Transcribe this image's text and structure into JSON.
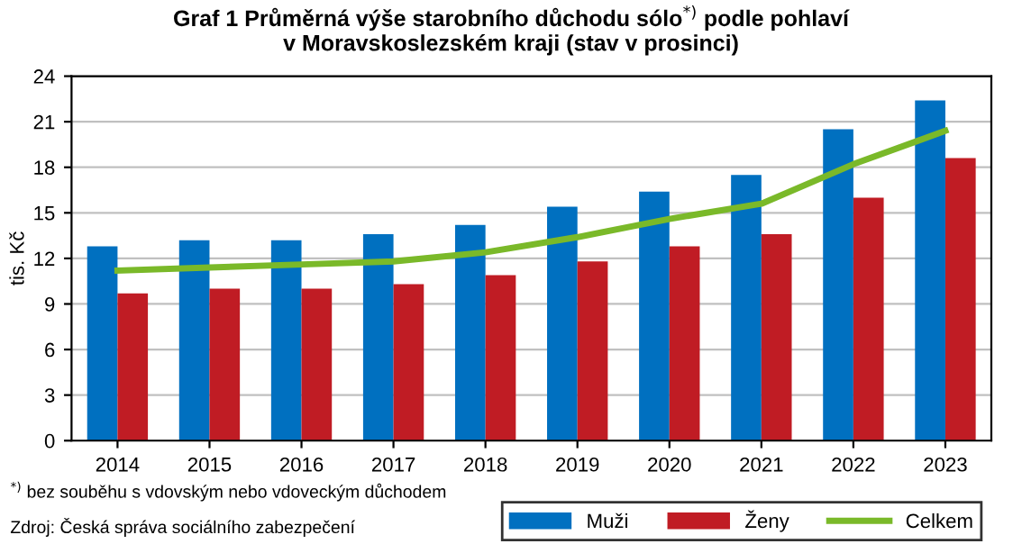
{
  "chart_data": {
    "type": "bar",
    "title": "Graf 1 Průměrná výše starobního důchodu sólo$^{*)}$ podle pohlaví\nv Moravskoslezském kraji (stav v prosinci)",
    "ylabel": "tis. Kč",
    "categories": [
      "2014",
      "2015",
      "2016",
      "2017",
      "2018",
      "2019",
      "2020",
      "2021",
      "2022",
      "2023"
    ],
    "series": [
      {
        "name": "Muži",
        "color": "#0070c0",
        "values": [
          12.8,
          13.2,
          13.2,
          13.6,
          14.2,
          15.4,
          16.4,
          17.5,
          20.5,
          22.4
        ]
      },
      {
        "name": "Ženy",
        "color": "#c01c24",
        "values": [
          9.7,
          10.0,
          10.0,
          10.3,
          10.9,
          11.8,
          12.8,
          13.6,
          16.0,
          18.6
        ]
      },
      {
        "name": "Celkem",
        "type": "line",
        "color": "#7ab929",
        "values": [
          11.2,
          11.4,
          11.6,
          11.8,
          12.4,
          13.4,
          14.6,
          15.6,
          18.2,
          20.4
        ]
      }
    ],
    "ylim": [
      0,
      24
    ],
    "yticks": [
      0,
      3,
      6,
      9,
      12,
      15,
      18,
      21,
      24
    ],
    "grid": "y",
    "legend": "bottom right",
    "annotations": [
      "$^{*)}$ bez souběhu s vdovským nebo vdoveckým důchodem",
      "Zdroj: Česká správa sociálního zabezpečení"
    ]
  }
}
